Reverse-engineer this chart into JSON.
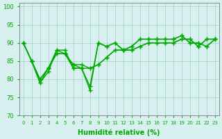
{
  "title": "",
  "xlabel": "Humidité relative (%)",
  "ylabel": "",
  "xlim": [
    -0.5,
    23.5
  ],
  "ylim": [
    70,
    101
  ],
  "yticks": [
    70,
    75,
    80,
    85,
    90,
    95,
    100
  ],
  "xtick_labels": [
    "0",
    "1",
    "2",
    "3",
    "4",
    "5",
    "6",
    "7",
    "8",
    "9",
    "10",
    "11",
    "12",
    "13",
    "14",
    "15",
    "16",
    "17",
    "18",
    "19",
    "20",
    "21",
    "22",
    "23"
  ],
  "background_color": "#d9f0f0",
  "grid_color": "#aaddcc",
  "line_color": "#00aa00",
  "series": [
    [
      90,
      85,
      79,
      83,
      88,
      88,
      83,
      83,
      77,
      90,
      89,
      90,
      88,
      89,
      91,
      91,
      91,
      91,
      91,
      92,
      90,
      90,
      89,
      91
    ],
    [
      90,
      85,
      79,
      82,
      88,
      87,
      83,
      83,
      78,
      90,
      89,
      90,
      88,
      89,
      91,
      91,
      91,
      91,
      91,
      92,
      90,
      90,
      89,
      91
    ],
    [
      90,
      85,
      80,
      83,
      87,
      87,
      84,
      83,
      83,
      84,
      86,
      88,
      88,
      88,
      89,
      90,
      90,
      90,
      90,
      91,
      91,
      89,
      91,
      91
    ],
    [
      90,
      85,
      80,
      83,
      87,
      87,
      84,
      84,
      83,
      84,
      86,
      88,
      88,
      88,
      89,
      90,
      90,
      90,
      90,
      91,
      91,
      89,
      91,
      91
    ]
  ],
  "marker": "+",
  "marker_size": 5,
  "linewidth": 1.0,
  "figsize": [
    3.2,
    2.0
  ],
  "dpi": 100
}
